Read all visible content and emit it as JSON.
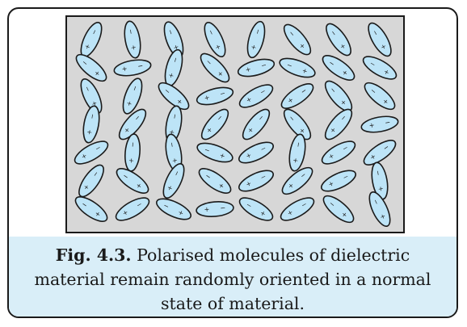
{
  "figure": {
    "colors": {
      "box_fill": "#d7d7d7",
      "box_stroke": "#1a1a1a",
      "molecule_fill": "#bde4f7",
      "molecule_stroke": "#1a1a1a",
      "caption_background": "#d9eef8"
    },
    "charge_labels": {
      "positive": "+",
      "negative": "−"
    },
    "molecules": [
      [
        115,
        80,
        70,
        65,
        105,
        50,
        55,
        60
      ],
      [
        40,
        170,
        105,
        45,
        165,
        20,
        35,
        30
      ],
      [
        65,
        110,
        40,
        165,
        150,
        145,
        50,
        40
      ],
      [
        100,
        130,
        100,
        130,
        130,
        50,
        130,
        170
      ],
      [
        150,
        95,
        80,
        20,
        155,
        100,
        150,
        145
      ],
      [
        125,
        35,
        115,
        35,
        155,
        140,
        155,
        80
      ],
      [
        35,
        150,
        25,
        175,
        30,
        150,
        40,
        65
      ]
    ]
  },
  "caption": {
    "label": "Fig. 4.3.",
    "text": "Polarised molecules of dielectric material remain randomly oriented in a normal state of material."
  }
}
